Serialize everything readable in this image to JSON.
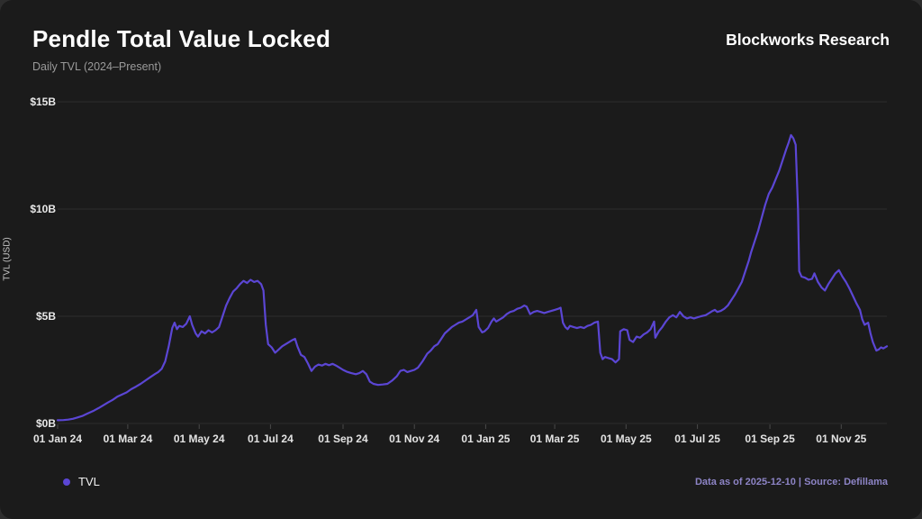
{
  "header": {
    "title": "Pendle Total Value Locked",
    "subtitle": "Daily TVL (2024–Present)",
    "brand": "Blockworks Research"
  },
  "footer": {
    "note": "Data as of 2025-12-10 | Source: Defillama"
  },
  "legend": [
    {
      "label": "TVL",
      "color": "#5b46d4"
    }
  ],
  "colors": {
    "page_background": "#2d2d2d",
    "card_background": "#1b1b1b",
    "grid": "#2e2e2e",
    "tick": "#4a4a4a",
    "accent": "#5b46d4",
    "footer_text": "#8d84c6",
    "text": "#ffffff",
    "muted_text": "#9a9a9a"
  },
  "chart_data": {
    "type": "line",
    "title": "Pendle Total Value Locked",
    "subtitle": "Daily TVL (2024–Present)",
    "xlabel": "",
    "ylabel": "TVL (USD)",
    "ylim": [
      0,
      15
    ],
    "y_tick_values": [
      0,
      5,
      10,
      15
    ],
    "y_tick_labels": [
      "$0B",
      "$5B",
      "$10B",
      "$15B"
    ],
    "x_range": [
      "2024-01-01",
      "2025-12-10"
    ],
    "x_ticks": [
      {
        "date": "2024-01-01",
        "label": "01 Jan 24"
      },
      {
        "date": "2024-03-01",
        "label": "01 Mar 24"
      },
      {
        "date": "2024-05-01",
        "label": "01 May 24"
      },
      {
        "date": "2024-07-01",
        "label": "01 Jul 24"
      },
      {
        "date": "2024-09-01",
        "label": "01 Sep 24"
      },
      {
        "date": "2024-11-01",
        "label": "01 Nov 24"
      },
      {
        "date": "2025-01-01",
        "label": "01 Jan 25"
      },
      {
        "date": "2025-03-01",
        "label": "01 Mar 25"
      },
      {
        "date": "2025-05-01",
        "label": "01 May 25"
      },
      {
        "date": "2025-07-01",
        "label": "01 Jul 25"
      },
      {
        "date": "2025-09-01",
        "label": "01 Sep 25"
      },
      {
        "date": "2025-11-01",
        "label": "01 Nov 25"
      }
    ],
    "grid": "horizontal",
    "legend_position": "bottom-left",
    "series": [
      {
        "name": "TVL",
        "color": "#5b46d4",
        "unit": "USD billions",
        "points": [
          [
            "2024-01-01",
            0.15
          ],
          [
            "2024-01-06",
            0.16
          ],
          [
            "2024-01-10",
            0.18
          ],
          [
            "2024-01-14",
            0.22
          ],
          [
            "2024-01-18",
            0.28
          ],
          [
            "2024-01-22",
            0.35
          ],
          [
            "2024-01-26",
            0.45
          ],
          [
            "2024-02-01",
            0.6
          ],
          [
            "2024-02-05",
            0.72
          ],
          [
            "2024-02-09",
            0.85
          ],
          [
            "2024-02-13",
            0.98
          ],
          [
            "2024-02-17",
            1.1
          ],
          [
            "2024-02-21",
            1.25
          ],
          [
            "2024-02-25",
            1.35
          ],
          [
            "2024-02-29",
            1.45
          ],
          [
            "2024-03-04",
            1.6
          ],
          [
            "2024-03-08",
            1.72
          ],
          [
            "2024-03-12",
            1.85
          ],
          [
            "2024-03-16",
            2.0
          ],
          [
            "2024-03-20",
            2.15
          ],
          [
            "2024-03-24",
            2.3
          ],
          [
            "2024-03-27",
            2.4
          ],
          [
            "2024-03-30",
            2.55
          ],
          [
            "2024-04-02",
            2.9
          ],
          [
            "2024-04-05",
            3.6
          ],
          [
            "2024-04-08",
            4.45
          ],
          [
            "2024-04-10",
            4.7
          ],
          [
            "2024-04-12",
            4.4
          ],
          [
            "2024-04-14",
            4.55
          ],
          [
            "2024-04-17",
            4.5
          ],
          [
            "2024-04-20",
            4.65
          ],
          [
            "2024-04-23",
            5.0
          ],
          [
            "2024-04-25",
            4.6
          ],
          [
            "2024-04-28",
            4.2
          ],
          [
            "2024-04-30",
            4.05
          ],
          [
            "2024-05-03",
            4.3
          ],
          [
            "2024-05-06",
            4.2
          ],
          [
            "2024-05-09",
            4.35
          ],
          [
            "2024-05-12",
            4.25
          ],
          [
            "2024-05-15",
            4.35
          ],
          [
            "2024-05-18",
            4.5
          ],
          [
            "2024-05-21",
            5.0
          ],
          [
            "2024-05-24",
            5.5
          ],
          [
            "2024-05-27",
            5.85
          ],
          [
            "2024-05-30",
            6.15
          ],
          [
            "2024-06-02",
            6.3
          ],
          [
            "2024-06-05",
            6.5
          ],
          [
            "2024-06-08",
            6.65
          ],
          [
            "2024-06-11",
            6.55
          ],
          [
            "2024-06-14",
            6.7
          ],
          [
            "2024-06-17",
            6.6
          ],
          [
            "2024-06-20",
            6.65
          ],
          [
            "2024-06-23",
            6.5
          ],
          [
            "2024-06-25",
            6.2
          ],
          [
            "2024-06-27",
            4.6
          ],
          [
            "2024-06-29",
            3.7
          ],
          [
            "2024-07-02",
            3.55
          ],
          [
            "2024-07-05",
            3.3
          ],
          [
            "2024-07-08",
            3.45
          ],
          [
            "2024-07-11",
            3.6
          ],
          [
            "2024-07-14",
            3.7
          ],
          [
            "2024-07-17",
            3.8
          ],
          [
            "2024-07-20",
            3.9
          ],
          [
            "2024-07-22",
            3.95
          ],
          [
            "2024-07-24",
            3.6
          ],
          [
            "2024-07-27",
            3.2
          ],
          [
            "2024-07-30",
            3.1
          ],
          [
            "2024-08-02",
            2.8
          ],
          [
            "2024-08-05",
            2.45
          ],
          [
            "2024-08-08",
            2.65
          ],
          [
            "2024-08-11",
            2.75
          ],
          [
            "2024-08-14",
            2.7
          ],
          [
            "2024-08-17",
            2.78
          ],
          [
            "2024-08-20",
            2.72
          ],
          [
            "2024-08-23",
            2.78
          ],
          [
            "2024-08-26",
            2.7
          ],
          [
            "2024-08-29",
            2.6
          ],
          [
            "2024-09-01",
            2.5
          ],
          [
            "2024-09-04",
            2.42
          ],
          [
            "2024-09-08",
            2.35
          ],
          [
            "2024-09-12",
            2.3
          ],
          [
            "2024-09-15",
            2.35
          ],
          [
            "2024-09-18",
            2.45
          ],
          [
            "2024-09-21",
            2.3
          ],
          [
            "2024-09-24",
            1.95
          ],
          [
            "2024-09-27",
            1.85
          ],
          [
            "2024-10-01",
            1.8
          ],
          [
            "2024-10-05",
            1.82
          ],
          [
            "2024-10-09",
            1.85
          ],
          [
            "2024-10-13",
            2.0
          ],
          [
            "2024-10-17",
            2.2
          ],
          [
            "2024-10-20",
            2.45
          ],
          [
            "2024-10-23",
            2.5
          ],
          [
            "2024-10-26",
            2.4
          ],
          [
            "2024-10-29",
            2.45
          ],
          [
            "2024-11-01",
            2.5
          ],
          [
            "2024-11-04",
            2.6
          ],
          [
            "2024-11-08",
            2.9
          ],
          [
            "2024-11-12",
            3.25
          ],
          [
            "2024-11-15",
            3.4
          ],
          [
            "2024-11-18",
            3.6
          ],
          [
            "2024-11-21",
            3.7
          ],
          [
            "2024-11-24",
            3.95
          ],
          [
            "2024-11-27",
            4.2
          ],
          [
            "2024-11-30",
            4.35
          ],
          [
            "2024-12-03",
            4.5
          ],
          [
            "2024-12-06",
            4.6
          ],
          [
            "2024-12-09",
            4.7
          ],
          [
            "2024-12-12",
            4.75
          ],
          [
            "2024-12-15",
            4.85
          ],
          [
            "2024-12-18",
            4.95
          ],
          [
            "2024-12-21",
            5.05
          ],
          [
            "2024-12-24",
            5.3
          ],
          [
            "2024-12-26",
            4.5
          ],
          [
            "2024-12-29",
            4.25
          ],
          [
            "2024-12-31",
            4.3
          ],
          [
            "2025-01-03",
            4.45
          ],
          [
            "2025-01-06",
            4.75
          ],
          [
            "2025-01-08",
            4.9
          ],
          [
            "2025-01-10",
            4.75
          ],
          [
            "2025-01-13",
            4.85
          ],
          [
            "2025-01-16",
            4.95
          ],
          [
            "2025-01-19",
            5.1
          ],
          [
            "2025-01-22",
            5.2
          ],
          [
            "2025-01-25",
            5.25
          ],
          [
            "2025-01-28",
            5.35
          ],
          [
            "2025-01-31",
            5.4
          ],
          [
            "2025-02-03",
            5.5
          ],
          [
            "2025-02-05",
            5.45
          ],
          [
            "2025-02-08",
            5.1
          ],
          [
            "2025-02-11",
            5.2
          ],
          [
            "2025-02-14",
            5.25
          ],
          [
            "2025-02-17",
            5.2
          ],
          [
            "2025-02-20",
            5.15
          ],
          [
            "2025-02-23",
            5.2
          ],
          [
            "2025-02-26",
            5.25
          ],
          [
            "2025-03-01",
            5.3
          ],
          [
            "2025-03-04",
            5.35
          ],
          [
            "2025-03-06",
            5.4
          ],
          [
            "2025-03-08",
            4.7
          ],
          [
            "2025-03-10",
            4.5
          ],
          [
            "2025-03-12",
            4.4
          ],
          [
            "2025-03-14",
            4.55
          ],
          [
            "2025-03-17",
            4.5
          ],
          [
            "2025-03-20",
            4.45
          ],
          [
            "2025-03-23",
            4.5
          ],
          [
            "2025-03-26",
            4.45
          ],
          [
            "2025-03-29",
            4.55
          ],
          [
            "2025-04-01",
            4.6
          ],
          [
            "2025-04-04",
            4.7
          ],
          [
            "2025-04-07",
            4.75
          ],
          [
            "2025-04-09",
            3.3
          ],
          [
            "2025-04-11",
            3.0
          ],
          [
            "2025-04-13",
            3.1
          ],
          [
            "2025-04-16",
            3.05
          ],
          [
            "2025-04-19",
            3.0
          ],
          [
            "2025-04-22",
            2.85
          ],
          [
            "2025-04-25",
            3.0
          ],
          [
            "2025-04-26",
            4.3
          ],
          [
            "2025-04-29",
            4.4
          ],
          [
            "2025-05-02",
            4.35
          ],
          [
            "2025-05-04",
            3.9
          ],
          [
            "2025-05-07",
            3.8
          ],
          [
            "2025-05-10",
            4.05
          ],
          [
            "2025-05-13",
            4.0
          ],
          [
            "2025-05-16",
            4.15
          ],
          [
            "2025-05-19",
            4.25
          ],
          [
            "2025-05-22",
            4.4
          ],
          [
            "2025-05-25",
            4.75
          ],
          [
            "2025-05-26",
            4.0
          ],
          [
            "2025-05-29",
            4.3
          ],
          [
            "2025-06-01",
            4.5
          ],
          [
            "2025-06-04",
            4.75
          ],
          [
            "2025-06-07",
            4.95
          ],
          [
            "2025-06-10",
            5.05
          ],
          [
            "2025-06-13",
            4.95
          ],
          [
            "2025-06-16",
            5.2
          ],
          [
            "2025-06-19",
            5.0
          ],
          [
            "2025-06-22",
            4.9
          ],
          [
            "2025-06-25",
            4.95
          ],
          [
            "2025-06-28",
            4.9
          ],
          [
            "2025-07-01",
            4.95
          ],
          [
            "2025-07-04",
            5.0
          ],
          [
            "2025-07-08",
            5.05
          ],
          [
            "2025-07-11",
            5.15
          ],
          [
            "2025-07-14",
            5.25
          ],
          [
            "2025-07-16",
            5.3
          ],
          [
            "2025-07-18",
            5.2
          ],
          [
            "2025-07-21",
            5.25
          ],
          [
            "2025-07-24",
            5.35
          ],
          [
            "2025-07-27",
            5.5
          ],
          [
            "2025-07-30",
            5.75
          ],
          [
            "2025-08-02",
            6.0
          ],
          [
            "2025-08-05",
            6.3
          ],
          [
            "2025-08-08",
            6.6
          ],
          [
            "2025-08-11",
            7.1
          ],
          [
            "2025-08-14",
            7.6
          ],
          [
            "2025-08-16",
            8.0
          ],
          [
            "2025-08-19",
            8.5
          ],
          [
            "2025-08-22",
            9.0
          ],
          [
            "2025-08-25",
            9.6
          ],
          [
            "2025-08-28",
            10.2
          ],
          [
            "2025-08-31",
            10.7
          ],
          [
            "2025-09-03",
            11.0
          ],
          [
            "2025-09-06",
            11.4
          ],
          [
            "2025-09-09",
            11.8
          ],
          [
            "2025-09-12",
            12.3
          ],
          [
            "2025-09-15",
            12.8
          ],
          [
            "2025-09-17",
            13.1
          ],
          [
            "2025-09-19",
            13.45
          ],
          [
            "2025-09-21",
            13.3
          ],
          [
            "2025-09-23",
            13.0
          ],
          [
            "2025-09-25",
            10.0
          ],
          [
            "2025-09-26",
            7.1
          ],
          [
            "2025-09-28",
            6.85
          ],
          [
            "2025-10-01",
            6.8
          ],
          [
            "2025-10-04",
            6.7
          ],
          [
            "2025-10-07",
            6.75
          ],
          [
            "2025-10-09",
            7.0
          ],
          [
            "2025-10-12",
            6.6
          ],
          [
            "2025-10-15",
            6.35
          ],
          [
            "2025-10-18",
            6.2
          ],
          [
            "2025-10-21",
            6.5
          ],
          [
            "2025-10-24",
            6.75
          ],
          [
            "2025-10-27",
            7.0
          ],
          [
            "2025-10-30",
            7.15
          ],
          [
            "2025-11-02",
            6.85
          ],
          [
            "2025-11-05",
            6.6
          ],
          [
            "2025-11-08",
            6.3
          ],
          [
            "2025-11-11",
            5.95
          ],
          [
            "2025-11-14",
            5.6
          ],
          [
            "2025-11-17",
            5.3
          ],
          [
            "2025-11-19",
            4.85
          ],
          [
            "2025-11-21",
            4.6
          ],
          [
            "2025-11-24",
            4.7
          ],
          [
            "2025-11-26",
            4.2
          ],
          [
            "2025-11-28",
            3.8
          ],
          [
            "2025-12-01",
            3.4
          ],
          [
            "2025-12-03",
            3.45
          ],
          [
            "2025-12-05",
            3.55
          ],
          [
            "2025-12-07",
            3.5
          ],
          [
            "2025-12-10",
            3.6
          ]
        ]
      }
    ]
  }
}
